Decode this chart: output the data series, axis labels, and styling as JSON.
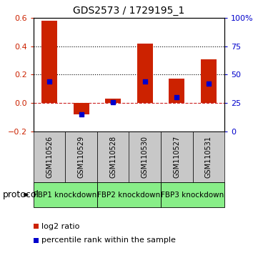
{
  "title": "GDS2573 / 1729195_1",
  "samples": [
    "GSM110526",
    "GSM110529",
    "GSM110528",
    "GSM110530",
    "GSM110527",
    "GSM110531"
  ],
  "log2_ratio": [
    0.58,
    -0.08,
    0.03,
    0.42,
    0.17,
    0.31
  ],
  "percentile_rank": [
    44,
    15,
    26,
    44,
    30,
    42
  ],
  "ylim_left": [
    -0.2,
    0.6
  ],
  "ylim_right": [
    0,
    100
  ],
  "yticks_left": [
    -0.2,
    0.0,
    0.2,
    0.4,
    0.6
  ],
  "yticks_right": [
    0,
    25,
    50,
    75,
    100
  ],
  "ytick_labels_right": [
    "0",
    "25",
    "50",
    "75",
    "100%"
  ],
  "hlines": [
    0.0,
    0.2,
    0.4
  ],
  "hline_styles": [
    "dashed",
    "dotted",
    "dotted"
  ],
  "hline_colors": [
    "#cc2222",
    "#000000",
    "#000000"
  ],
  "bar_color": "#cc2200",
  "dot_color": "#0000cc",
  "bar_width": 0.5,
  "protocols": [
    {
      "label": "FBP1 knockdown",
      "start": 0,
      "end": 2,
      "color": "#88ee88"
    },
    {
      "label": "FBP2 knockdown",
      "start": 2,
      "end": 4,
      "color": "#88ee88"
    },
    {
      "label": "FBP3 knockdown",
      "start": 4,
      "end": 6,
      "color": "#88ee88"
    }
  ],
  "protocol_label": "protocol",
  "legend_items": [
    {
      "label": "log2 ratio",
      "color": "#cc2200"
    },
    {
      "label": "percentile rank within the sample",
      "color": "#0000cc"
    }
  ],
  "bg_color_plot": "#ffffff",
  "bg_color_label": "#c8c8c8",
  "tick_label_color_left": "#cc2200",
  "tick_label_color_right": "#0000cc",
  "title_fontsize": 10,
  "tick_fontsize": 8,
  "sample_fontsize": 7,
  "protocol_fontsize": 7.5,
  "legend_fontsize": 8
}
